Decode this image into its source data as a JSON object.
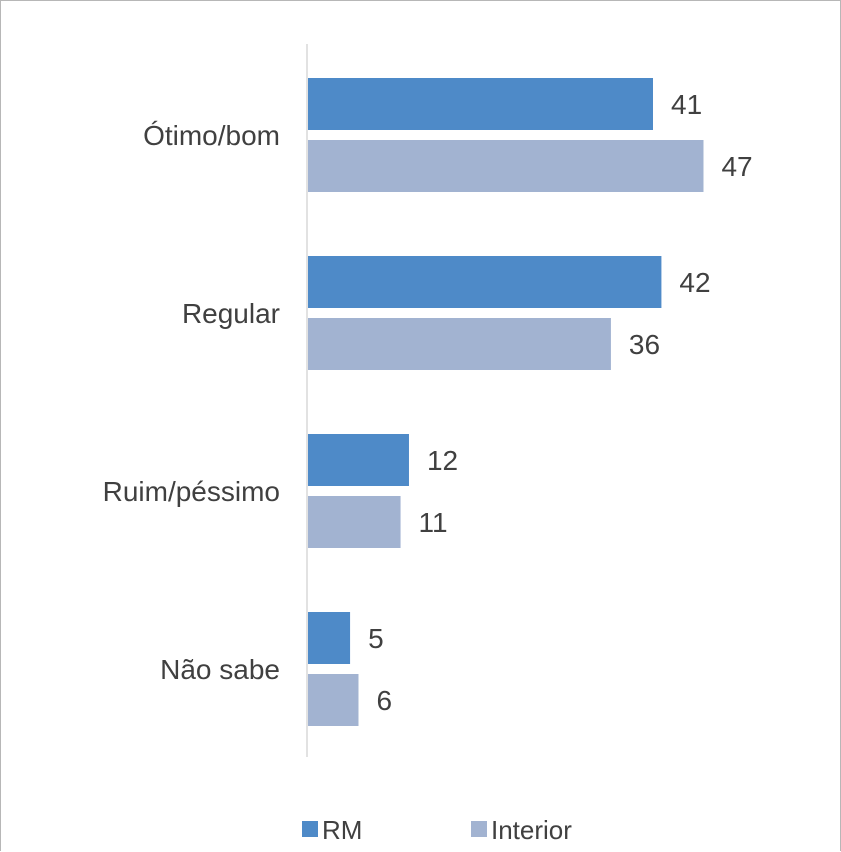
{
  "chart_data": {
    "type": "bar",
    "orientation": "horizontal",
    "categories": [
      "Ótimo/bom",
      "Regular",
      "Ruim/péssimo",
      "Não sabe"
    ],
    "series": [
      {
        "name": "RM",
        "values": [
          41,
          42,
          12,
          5
        ],
        "color": "#4e8ac8"
      },
      {
        "name": "Interior",
        "values": [
          47,
          36,
          11,
          6
        ],
        "color": "#a2b3d1"
      }
    ],
    "value_labels": [
      "41",
      "47",
      "42",
      "36",
      "12",
      "11",
      "5",
      "6"
    ],
    "title": "",
    "xlabel": "",
    "ylabel": "",
    "xlim": [
      0,
      60
    ],
    "grid": false,
    "legend": "bottom"
  }
}
